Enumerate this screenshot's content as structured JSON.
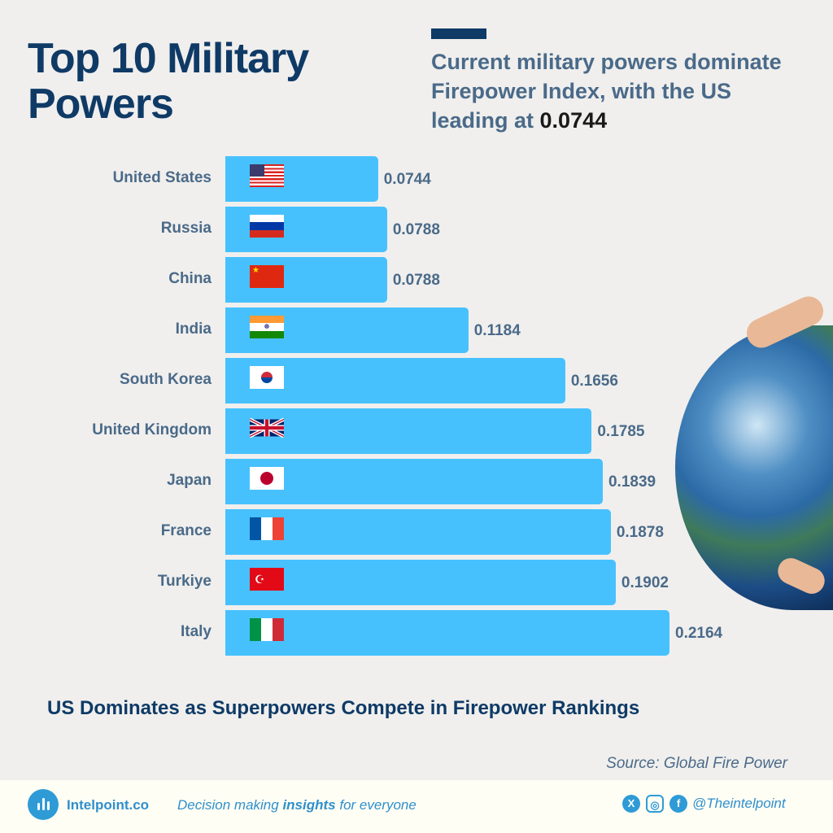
{
  "header": {
    "title": "Top 10 Military Powers",
    "subtitle_text": "Current military powers dominate Firepower Index, with the US leading at ",
    "subtitle_value": "0.0744"
  },
  "chart_data": {
    "type": "bar",
    "orientation": "horizontal",
    "categories": [
      "United States",
      "Russia",
      "China",
      "India",
      "South Korea",
      "United Kingdom",
      "Japan",
      "France",
      "Turkiye",
      "Italy"
    ],
    "values": [
      0.0744,
      0.0788,
      0.0788,
      0.1184,
      0.1656,
      0.1785,
      0.1839,
      0.1878,
      0.1902,
      0.2164
    ],
    "value_labels": [
      "0.0744",
      "0.0788",
      "0.0788",
      "0.1184",
      "0.1656",
      "0.1785",
      "0.1839",
      "0.1878",
      "0.1902",
      "0.2164"
    ],
    "flags": [
      "us",
      "ru",
      "cn",
      "in",
      "kr",
      "gb",
      "jp",
      "fr",
      "tr",
      "it"
    ],
    "bar_color": "#47c1fd",
    "grid": false
  },
  "bottom_caption": "US Dominates as Superpowers Compete in Firepower Rankings",
  "source": "Source: Global Fire Power",
  "footer": {
    "brand": "Intelpoint.co",
    "tagline_pre": "Decision making ",
    "tagline_bold": "insights",
    "tagline_post": " for everyone",
    "handle": "@Theintelpoint",
    "social_icons": [
      "x-icon",
      "instagram-icon",
      "facebook-icon"
    ]
  }
}
